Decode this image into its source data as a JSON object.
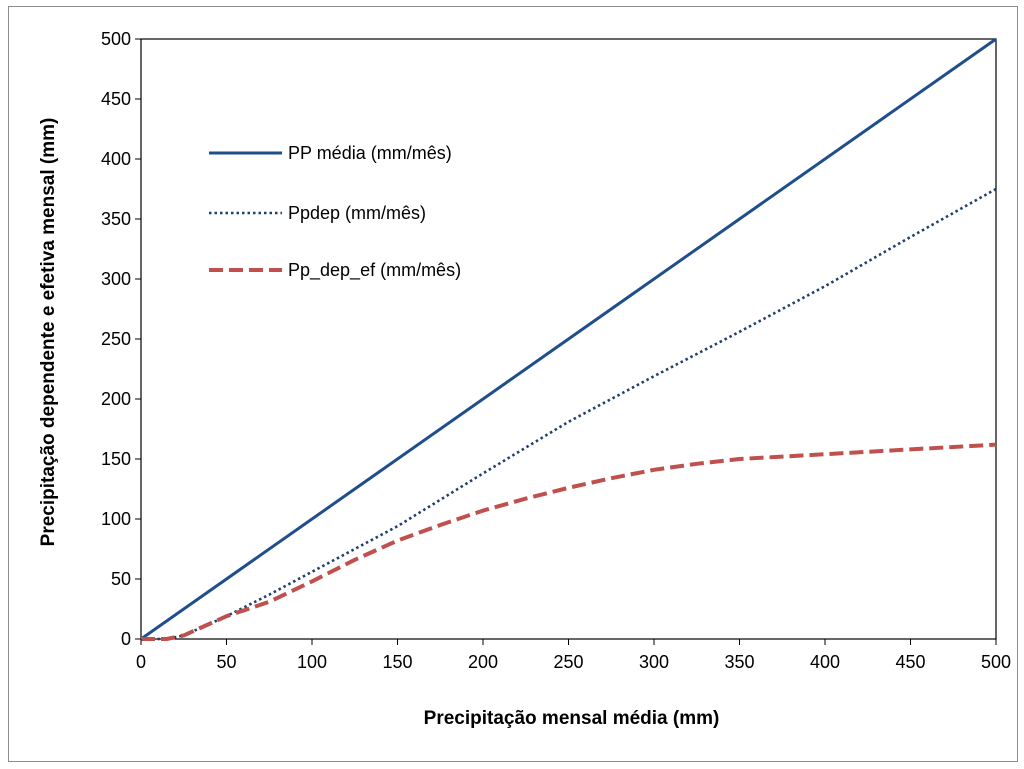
{
  "chart_data": {
    "type": "line",
    "title": "",
    "xlabel": "Precipitação mensal média (mm)",
    "ylabel": "Precipitação dependente e efetiva mensal (mm)",
    "xlim": [
      0,
      500
    ],
    "ylim": [
      0,
      500
    ],
    "x_ticks": [
      "0",
      "50",
      "100",
      "150",
      "200",
      "250",
      "300",
      "350",
      "400",
      "450",
      "500"
    ],
    "y_ticks": [
      "0",
      "50",
      "100",
      "150",
      "200",
      "250",
      "300",
      "350",
      "400",
      "450",
      "500"
    ],
    "grid": false,
    "legend_position": "top-left",
    "series": [
      {
        "name": "PP média (mm/mês)",
        "color": "#1f4e8c",
        "style": "solid",
        "x": [
          0,
          500
        ],
        "y": [
          0,
          500
        ]
      },
      {
        "name": "Ppdep (mm/mês)",
        "color": "#1f3f6e",
        "style": "dotted",
        "x": [
          0,
          15,
          25,
          50,
          75,
          100,
          150,
          200,
          250,
          300,
          350,
          400,
          450,
          500
        ],
        "y": [
          0,
          0,
          3,
          19,
          37,
          56,
          94,
          138,
          181,
          219,
          256,
          294,
          335,
          375
        ]
      },
      {
        "name": "Pp_dep_ef (mm/mês)",
        "color": "#c0504d",
        "style": "dashed",
        "x": [
          0,
          15,
          25,
          50,
          75,
          100,
          125,
          150,
          175,
          200,
          225,
          250,
          275,
          300,
          325,
          350,
          375,
          400,
          450,
          500
        ],
        "y": [
          0,
          0,
          3,
          19,
          31,
          48,
          66,
          82,
          95,
          107,
          117,
          126,
          134,
          141,
          146,
          150,
          152,
          154,
          158,
          162
        ]
      }
    ]
  }
}
